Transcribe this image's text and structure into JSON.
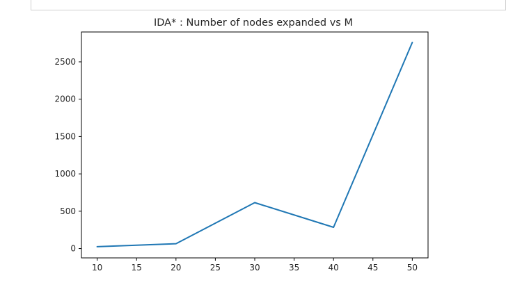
{
  "chart_data": {
    "type": "line",
    "title": "IDA* : Number of nodes expanded vs M",
    "xlabel": "",
    "ylabel": "",
    "x": [
      10,
      20,
      30,
      40,
      50
    ],
    "series": [
      {
        "values": [
          25,
          65,
          615,
          285,
          2760
        ],
        "color": "#1f77b4"
      }
    ],
    "xlim": [
      8,
      52
    ],
    "ylim": [
      -125,
      2900
    ],
    "xticks": [
      10,
      15,
      20,
      25,
      30,
      35,
      40,
      45,
      50
    ],
    "yticks": [
      0,
      500,
      1000,
      1500,
      2000,
      2500
    ],
    "grid": false,
    "legend": "none"
  }
}
